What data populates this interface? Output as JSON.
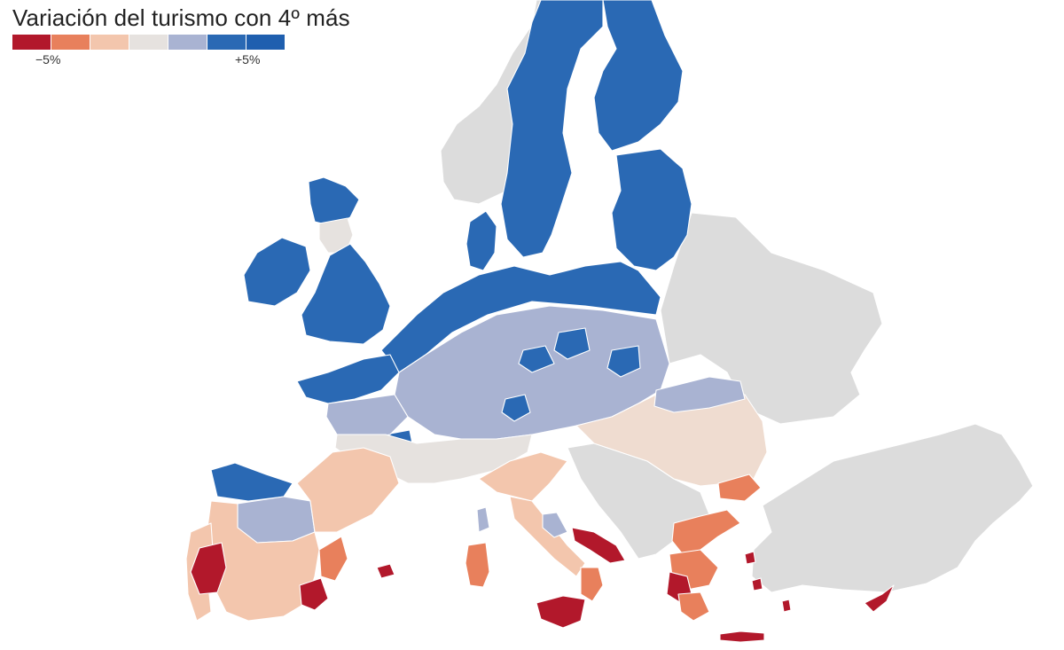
{
  "title": "Variación del turismo con 4º más",
  "legend": {
    "min_label": "−5%",
    "max_label": "+5%",
    "colors": [
      "#b2182b",
      "#e8805c",
      "#f3c6ad",
      "#e6e2df",
      "#a9b3d2",
      "#2a69b4",
      "#1f5faf"
    ]
  },
  "palette": {
    "no_data": "#dcdcdc",
    "strong_decrease": "#b2182b",
    "decrease": "#e8805c",
    "slight_decrease": "#f3c6ad",
    "neutral": "#e6e2df",
    "slight_increase": "#a9b3d2",
    "increase": "#2a69b4"
  }
}
